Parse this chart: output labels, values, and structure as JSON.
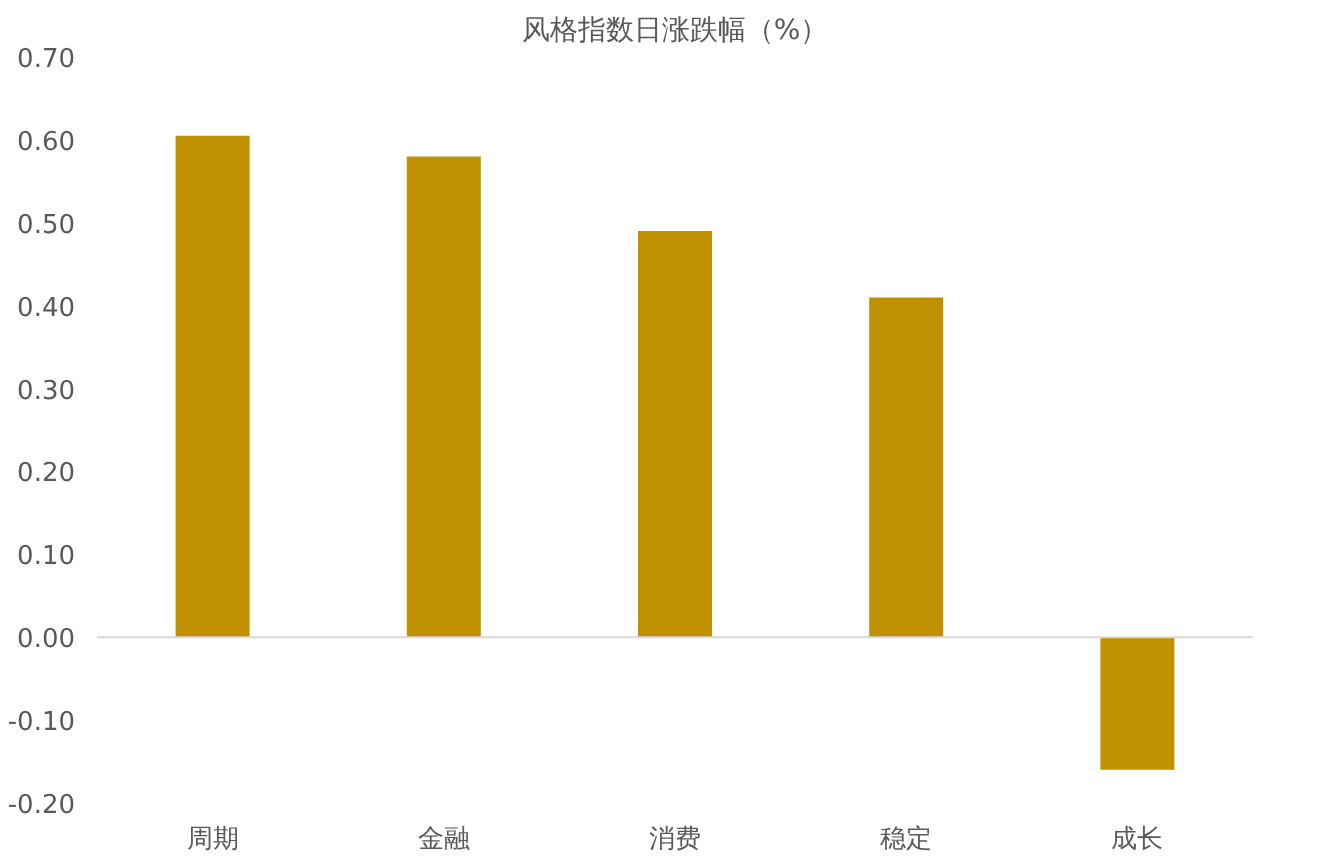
{
  "chart_data": {
    "type": "bar",
    "title": "风格指数日涨跌幅（%）",
    "categories": [
      "周期",
      "金融",
      "消费",
      "稳定",
      "成长"
    ],
    "values": [
      0.605,
      0.58,
      0.49,
      0.41,
      -0.16
    ],
    "color": "#bf9000",
    "ylim": [
      -0.2,
      0.7
    ],
    "yticks": [
      {
        "value": -0.2,
        "label": "-0.20"
      },
      {
        "value": -0.1,
        "label": "-0.10"
      },
      {
        "value": 0,
        "label": "0.00"
      },
      {
        "value": 0.1,
        "label": "0.10"
      },
      {
        "value": 0.2,
        "label": "0.20"
      },
      {
        "value": 0.3,
        "label": "0.30"
      },
      {
        "value": 0.4,
        "label": "0.40"
      },
      {
        "value": 0.5,
        "label": "0.50"
      },
      {
        "value": 0.6,
        "label": "0.60"
      },
      {
        "value": 0.7,
        "label": "0.70"
      }
    ],
    "ref_lines": [
      {
        "axis": "y",
        "value": 0,
        "label": null,
        "color": "#d9d9d9"
      }
    ],
    "grid": false
  }
}
